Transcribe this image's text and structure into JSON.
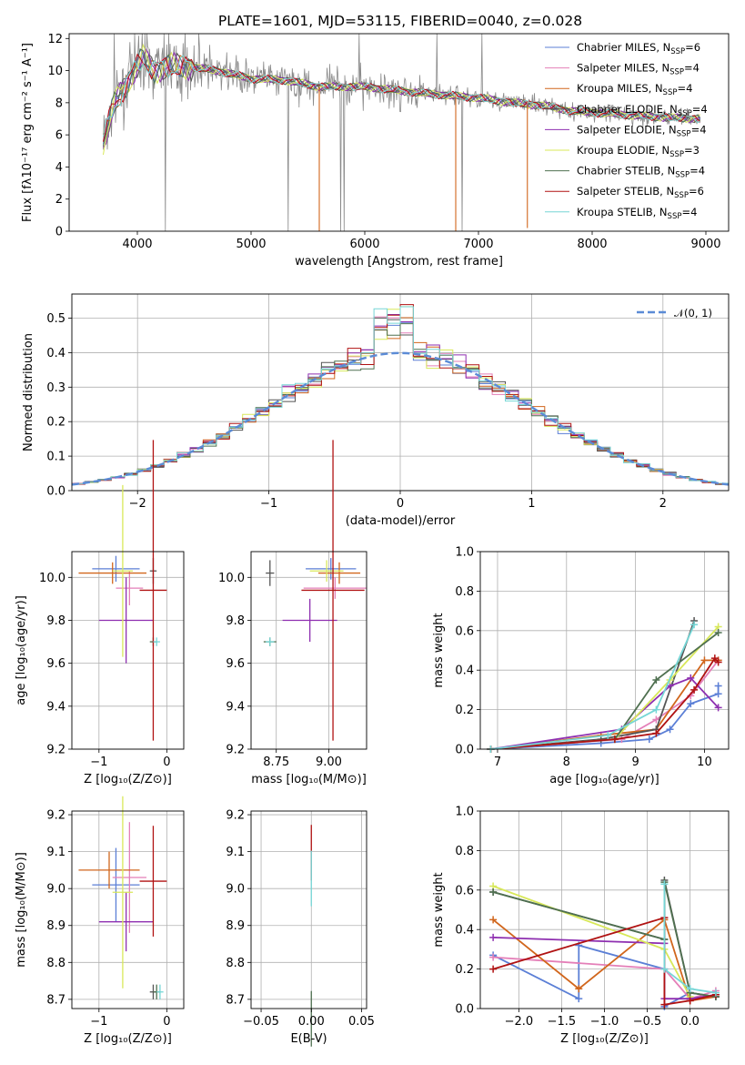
{
  "colors": {
    "chabrier_miles": "#5b7fd6",
    "salpeter_miles": "#e47fb8",
    "kroupa_miles": "#d1661c",
    "chabrier_elodie": "#555555",
    "salpeter_elodie": "#8e2fb0",
    "kroupa_elodie": "#d8e85a",
    "chabrier_stelib": "#4f7050",
    "salpeter_stelib": "#b01212",
    "kroupa_stelib": "#76d6d6",
    "data_spectrum": "#8a8a8a",
    "gaussian": "#5b8bd6"
  },
  "spectrum_panel": {
    "title": "PLATE=1601, MJD=53115, FIBERID=0040, z=0.028",
    "xlabel": "wavelength [Angstrom, rest frame]",
    "ylabel": "Flux [fλ10⁻¹⁷ erg cm⁻² s⁻¹ A⁻¹]",
    "legend": [
      {
        "model": "Chabrier MILES",
        "n": "6"
      },
      {
        "model": "Salpeter MILES",
        "n": "4"
      },
      {
        "model": "Kroupa MILES",
        "n": "4"
      },
      {
        "model": "Chabrier ELODIE",
        "n": "4"
      },
      {
        "model": "Salpeter ELODIE",
        "n": "4"
      },
      {
        "model": "Kroupa ELODIE",
        "n": "3"
      },
      {
        "model": "Chabrier STELIB",
        "n": "4"
      },
      {
        "model": "Salpeter STELIB",
        "n": "6"
      },
      {
        "model": "Kroupa STELIB",
        "n": "4"
      }
    ],
    "nssp_prefix": "N",
    "nssp_sub": "SSP"
  },
  "chart_data": [
    {
      "type": "line",
      "title": "PLATE=1601, MJD=53115, FIBERID=0040, z=0.028",
      "xlabel": "wavelength [Angstrom, rest frame]",
      "ylabel": "Flux [fλ10⁻¹⁷ erg cm⁻² s⁻¹ A⁻¹]",
      "xlim": [
        3400,
        9200
      ],
      "ylim": [
        0,
        12.3
      ],
      "xticks": [
        4000,
        5000,
        6000,
        7000,
        8000,
        9000
      ],
      "yticks": [
        0,
        2,
        4,
        6,
        8,
        10,
        12
      ],
      "continuum": {
        "x": [
          3700,
          3800,
          3950,
          4050,
          4150,
          4300,
          4500,
          4700,
          5000,
          5300,
          5600,
          6000,
          6500,
          7000,
          7300,
          7600,
          7800,
          8200,
          8600,
          8950
        ],
        "y": [
          5.5,
          8.0,
          9.7,
          10.8,
          10.0,
          10.3,
          10.2,
          10.0,
          9.5,
          9.4,
          9.0,
          9.0,
          8.6,
          8.3,
          8.0,
          7.8,
          7.5,
          7.3,
          7.1,
          7.0
        ]
      },
      "grid": false,
      "legend_position": "upper right"
    },
    {
      "type": "histogram",
      "xlabel": "(data-model)/error",
      "ylabel": "Normed distribution",
      "xlim": [
        -2.5,
        2.5
      ],
      "ylim": [
        0,
        0.57
      ],
      "xticks": [
        -2,
        -1,
        0,
        1,
        2
      ],
      "yticks": [
        0.0,
        0.1,
        0.2,
        0.3,
        0.4,
        0.5
      ],
      "bin_width": 0.1,
      "reference_curve": {
        "name": "𝒩(0, 1)",
        "mean": 0,
        "sigma": 1
      },
      "grid": true,
      "legend_position": "upper right"
    },
    {
      "type": "errorbar",
      "xlabel": "Z [log₁₀(Z/Z⊙)]",
      "ylabel": "age  [log₁₀(age/yr)]",
      "xlim": [
        -1.4,
        0.25
      ],
      "ylim": [
        9.2,
        10.12
      ],
      "xticks": [
        -1,
        0
      ],
      "yticks": [
        9.2,
        9.4,
        9.6,
        9.8,
        10.0
      ],
      "points": [
        {
          "series": "Chabrier MILES",
          "x": -0.75,
          "xerr": 0.35,
          "y": 10.04,
          "yerr": 0.06
        },
        {
          "series": "Salpeter MILES",
          "x": -0.55,
          "xerr": 0.2,
          "y": 9.95,
          "yerr": 0.08
        },
        {
          "series": "Kroupa MILES",
          "x": -0.8,
          "xerr": 0.5,
          "y": 10.02,
          "yerr": 0.05
        },
        {
          "series": "Chabrier ELODIE",
          "x": -0.2,
          "xerr": 0.05,
          "y": 10.03,
          "yerr": 0.06
        },
        {
          "series": "Salpeter ELODIE",
          "x": -0.6,
          "xerr": 0.4,
          "y": 9.8,
          "yerr": 0.2
        },
        {
          "series": "Kroupa ELODIE",
          "x": -0.65,
          "xerr": 0.15,
          "y": 10.03,
          "yerr": 0.4
        },
        {
          "series": "Chabrier STELIB",
          "x": -0.2,
          "xerr": 0.05,
          "y": 9.7,
          "yerr": 0.02
        },
        {
          "series": "Salpeter STELIB",
          "x": -0.2,
          "xerr": 0.2,
          "y": 9.94,
          "yerr": 0.7
        },
        {
          "series": "Kroupa STELIB",
          "x": -0.15,
          "xerr": 0.05,
          "y": 9.7,
          "yerr": 0.02
        }
      ],
      "grid": true
    },
    {
      "type": "errorbar",
      "xlabel": "mass [log₁₀(M/M⊙)]",
      "xlim": [
        8.63,
        9.18
      ],
      "ylim": [
        9.2,
        10.12
      ],
      "xticks": [
        8.75,
        9.0
      ],
      "yticks": [
        9.2,
        9.4,
        9.6,
        9.8,
        10.0
      ],
      "points": [
        {
          "series": "Chabrier MILES",
          "x": 9.01,
          "xerr": 0.12,
          "y": 10.04,
          "yerr": 0.05
        },
        {
          "series": "Salpeter MILES",
          "x": 9.03,
          "xerr": 0.15,
          "y": 9.95,
          "yerr": 0.05
        },
        {
          "series": "Kroupa MILES",
          "x": 9.05,
          "xerr": 0.1,
          "y": 10.02,
          "yerr": 0.05
        },
        {
          "series": "Chabrier ELODIE",
          "x": 8.72,
          "xerr": 0.02,
          "y": 10.02,
          "yerr": 0.06
        },
        {
          "series": "Salpeter ELODIE",
          "x": 8.91,
          "xerr": 0.13,
          "y": 9.8,
          "yerr": 0.1
        },
        {
          "series": "Kroupa ELODIE",
          "x": 8.99,
          "xerr": 0.08,
          "y": 10.03,
          "yerr": 0.05
        },
        {
          "series": "Chabrier STELIB",
          "x": 8.72,
          "xerr": 0.03,
          "y": 9.7,
          "yerr": 0.02
        },
        {
          "series": "Salpeter STELIB",
          "x": 9.02,
          "xerr": 0.15,
          "y": 9.94,
          "yerr": 0.7
        },
        {
          "series": "Kroupa STELIB",
          "x": 8.72,
          "xerr": 0.02,
          "y": 9.7,
          "yerr": 0.02
        }
      ],
      "grid": true
    },
    {
      "type": "line",
      "xlabel": "age  [log₁₀(age/yr)]",
      "ylabel": "mass weight",
      "xlim": [
        6.75,
        10.35
      ],
      "ylim": [
        0,
        1.0
      ],
      "xticks": [
        7,
        8,
        9,
        10
      ],
      "yticks": [
        0.0,
        0.2,
        0.4,
        0.6,
        0.8,
        1.0
      ],
      "grid": true,
      "series": [
        {
          "name": "Chabrier MILES",
          "x": [
            6.9,
            8.5,
            9.2,
            9.5,
            9.8,
            10.2,
            10.2
          ],
          "y": [
            0.0,
            0.03,
            0.05,
            0.1,
            0.23,
            0.28,
            0.32
          ]
        },
        {
          "name": "Salpeter MILES",
          "x": [
            6.9,
            8.8,
            9.3,
            9.8,
            10.2
          ],
          "y": [
            0.0,
            0.05,
            0.15,
            0.27,
            0.45
          ]
        },
        {
          "name": "Kroupa MILES",
          "x": [
            6.9,
            8.5,
            9.3,
            10.0,
            10.2
          ],
          "y": [
            0.0,
            0.07,
            0.1,
            0.45,
            0.45
          ]
        },
        {
          "name": "Chabrier ELODIE",
          "x": [
            6.9,
            8.5,
            9.3,
            9.85
          ],
          "y": [
            0.0,
            0.05,
            0.1,
            0.65
          ]
        },
        {
          "name": "Salpeter ELODIE",
          "x": [
            6.9,
            8.8,
            9.5,
            9.8,
            10.2
          ],
          "y": [
            0.0,
            0.1,
            0.32,
            0.36,
            0.21
          ]
        },
        {
          "name": "Kroupa ELODIE",
          "x": [
            6.9,
            8.7,
            9.5,
            10.2
          ],
          "y": [
            0.0,
            0.05,
            0.35,
            0.62
          ]
        },
        {
          "name": "Chabrier STELIB",
          "x": [
            6.9,
            8.7,
            9.3,
            10.2
          ],
          "y": [
            0.0,
            0.05,
            0.35,
            0.59
          ]
        },
        {
          "name": "Salpeter STELIB",
          "x": [
            6.9,
            8.7,
            9.3,
            9.85,
            10.15,
            10.2
          ],
          "y": [
            0.0,
            0.05,
            0.08,
            0.3,
            0.46,
            0.44
          ]
        },
        {
          "name": "Kroupa STELIB",
          "x": [
            6.9,
            8.6,
            9.3,
            9.85
          ],
          "y": [
            0.0,
            0.07,
            0.2,
            0.63
          ]
        }
      ]
    },
    {
      "type": "errorbar",
      "xlabel": "Z [log₁₀(Z/Z⊙)]",
      "ylabel": "mass [log₁₀(M/M⊙)]",
      "xlim": [
        -1.4,
        0.25
      ],
      "ylim": [
        8.675,
        9.21
      ],
      "xticks": [
        -1,
        0
      ],
      "yticks": [
        8.7,
        8.8,
        8.9,
        9.0,
        9.1,
        9.2
      ],
      "points": [
        {
          "series": "Chabrier MILES",
          "x": -0.75,
          "xerr": 0.35,
          "y": 9.01,
          "yerr": 0.1
        },
        {
          "series": "Salpeter MILES",
          "x": -0.55,
          "xerr": 0.25,
          "y": 9.03,
          "yerr": 0.15
        },
        {
          "series": "Kroupa MILES",
          "x": -0.85,
          "xerr": 0.45,
          "y": 9.05,
          "yerr": 0.05
        },
        {
          "series": "Chabrier ELODIE",
          "x": -0.2,
          "xerr": 0.05,
          "y": 8.72,
          "yerr": 0.02
        },
        {
          "series": "Salpeter ELODIE",
          "x": -0.6,
          "xerr": 0.4,
          "y": 8.91,
          "yerr": 0.08
        },
        {
          "series": "Kroupa ELODIE",
          "x": -0.65,
          "xerr": 0.15,
          "y": 8.99,
          "yerr": 0.26
        },
        {
          "series": "Chabrier STELIB",
          "x": -0.15,
          "xerr": 0.05,
          "y": 8.72,
          "yerr": 0.02
        },
        {
          "series": "Salpeter STELIB",
          "x": -0.2,
          "xerr": 0.2,
          "y": 9.02,
          "yerr": 0.15
        },
        {
          "series": "Kroupa STELIB",
          "x": -0.1,
          "xerr": 0.05,
          "y": 8.72,
          "yerr": 0.02
        }
      ],
      "grid": true
    },
    {
      "type": "errorbar",
      "xlabel": "E(B-V)",
      "xlim": [
        -0.06,
        0.055
      ],
      "ylim": [
        8.675,
        9.21
      ],
      "xticks": [
        -0.05,
        0.0,
        0.05
      ],
      "yticks": [
        8.7,
        8.8,
        8.9,
        9.0,
        9.1,
        9.2
      ],
      "points": [
        {
          "series": "Salpeter STELIB",
          "x": 0.0,
          "xerr": 0.0,
          "y": 9.17,
          "yerr": 0.0
        },
        {
          "series": "Kroupa STELIB",
          "x": 0.0,
          "xerr": 0.0,
          "y": 9.1,
          "yerr": 0.0
        },
        {
          "series": "Chabrier STELIB",
          "x": 0.0,
          "xerr": 0.0,
          "y": 8.72,
          "yerr": 0.0
        }
      ],
      "grid": true
    },
    {
      "type": "line",
      "xlabel": "Z [log₁₀(Z/Z⊙)]",
      "ylabel": "mass weight",
      "xlim": [
        -2.45,
        0.45
      ],
      "ylim": [
        0,
        1.0
      ],
      "xticks": [
        -2.0,
        -1.5,
        -1.0,
        -0.5,
        0.0
      ],
      "yticks": [
        0.0,
        0.2,
        0.4,
        0.6,
        0.8,
        1.0
      ],
      "grid": true,
      "series": [
        {
          "name": "Chabrier MILES",
          "x": [
            -2.3,
            -1.3,
            -1.3,
            -0.3,
            -0.3,
            0.0,
            0.3
          ],
          "y": [
            0.27,
            0.05,
            0.32,
            0.2,
            0.01,
            0.08,
            0.06
          ]
        },
        {
          "name": "Salpeter MILES",
          "x": [
            -2.3,
            -0.3,
            0.0,
            0.3
          ],
          "y": [
            0.26,
            0.2,
            0.05,
            0.09
          ]
        },
        {
          "name": "Kroupa MILES",
          "x": [
            -2.3,
            -1.3,
            -0.3,
            0.0,
            0.3
          ],
          "y": [
            0.45,
            0.1,
            0.45,
            0.04,
            0.06
          ]
        },
        {
          "name": "Chabrier ELODIE",
          "x": [
            -2.3,
            -0.3,
            -0.3,
            0.0,
            0.3
          ],
          "y": [
            0.59,
            0.35,
            0.65,
            0.08,
            0.06
          ]
        },
        {
          "name": "Salpeter ELODIE",
          "x": [
            -2.3,
            -0.3,
            -0.3,
            0.0,
            0.3
          ],
          "y": [
            0.36,
            0.33,
            0.05,
            0.05,
            0.07
          ]
        },
        {
          "name": "Kroupa ELODIE",
          "x": [
            -2.3,
            -0.3,
            0.0
          ],
          "y": [
            0.62,
            0.3,
            0.06
          ]
        },
        {
          "name": "Chabrier STELIB",
          "x": [
            -2.3,
            -0.3,
            -0.3,
            0.0,
            0.3
          ],
          "y": [
            0.59,
            0.35,
            0.64,
            0.08,
            0.06
          ]
        },
        {
          "name": "Salpeter STELIB",
          "x": [
            -2.3,
            -0.3,
            -0.3,
            0.0,
            0.3
          ],
          "y": [
            0.2,
            0.46,
            0.02,
            0.04,
            0.07
          ]
        },
        {
          "name": "Kroupa STELIB",
          "x": [
            -0.3,
            -0.3,
            0.0,
            0.3
          ],
          "y": [
            0.63,
            0.2,
            0.1,
            0.08
          ]
        }
      ]
    }
  ]
}
